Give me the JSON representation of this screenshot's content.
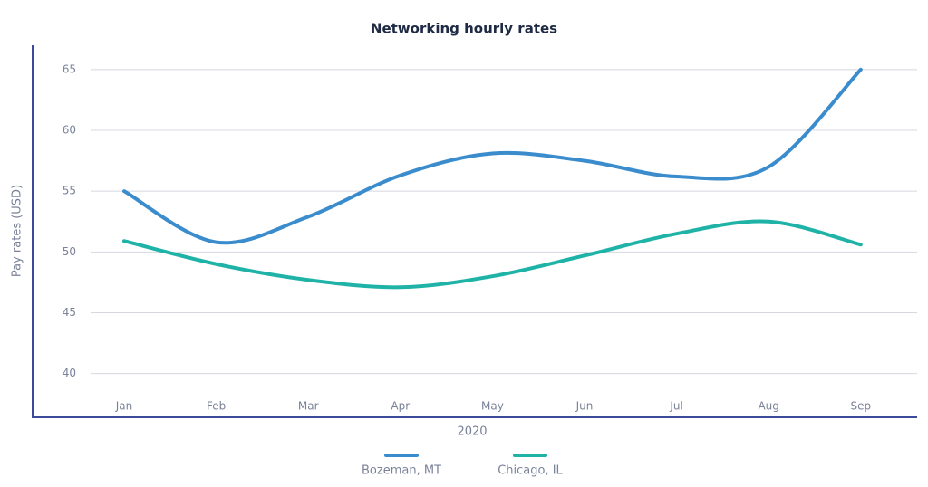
{
  "chart_data": {
    "type": "line",
    "title": "Networking hourly rates",
    "x_label": "2020",
    "y_label": "Pay rates (USD)",
    "categories": [
      "Jan",
      "Feb",
      "Mar",
      "Apr",
      "May",
      "Jun",
      "Jul",
      "Aug",
      "Sep"
    ],
    "series": [
      {
        "name": "Bozeman, MT",
        "color": "#3a8ccc",
        "values": [
          55,
          50.8,
          52.9,
          56.3,
          58.1,
          57.5,
          56.2,
          57,
          65
        ]
      },
      {
        "name": "Chicago, IL",
        "color": "#1fb3a8",
        "values": [
          50.9,
          49,
          47.7,
          47.1,
          48,
          49.7,
          51.5,
          52.5,
          50.6
        ]
      }
    ],
    "ylim": [
      36.4,
      67
    ],
    "yticks": [
      40,
      45,
      50,
      55,
      60,
      65
    ],
    "grid": true,
    "legend": "bottom",
    "smooth": true
  }
}
